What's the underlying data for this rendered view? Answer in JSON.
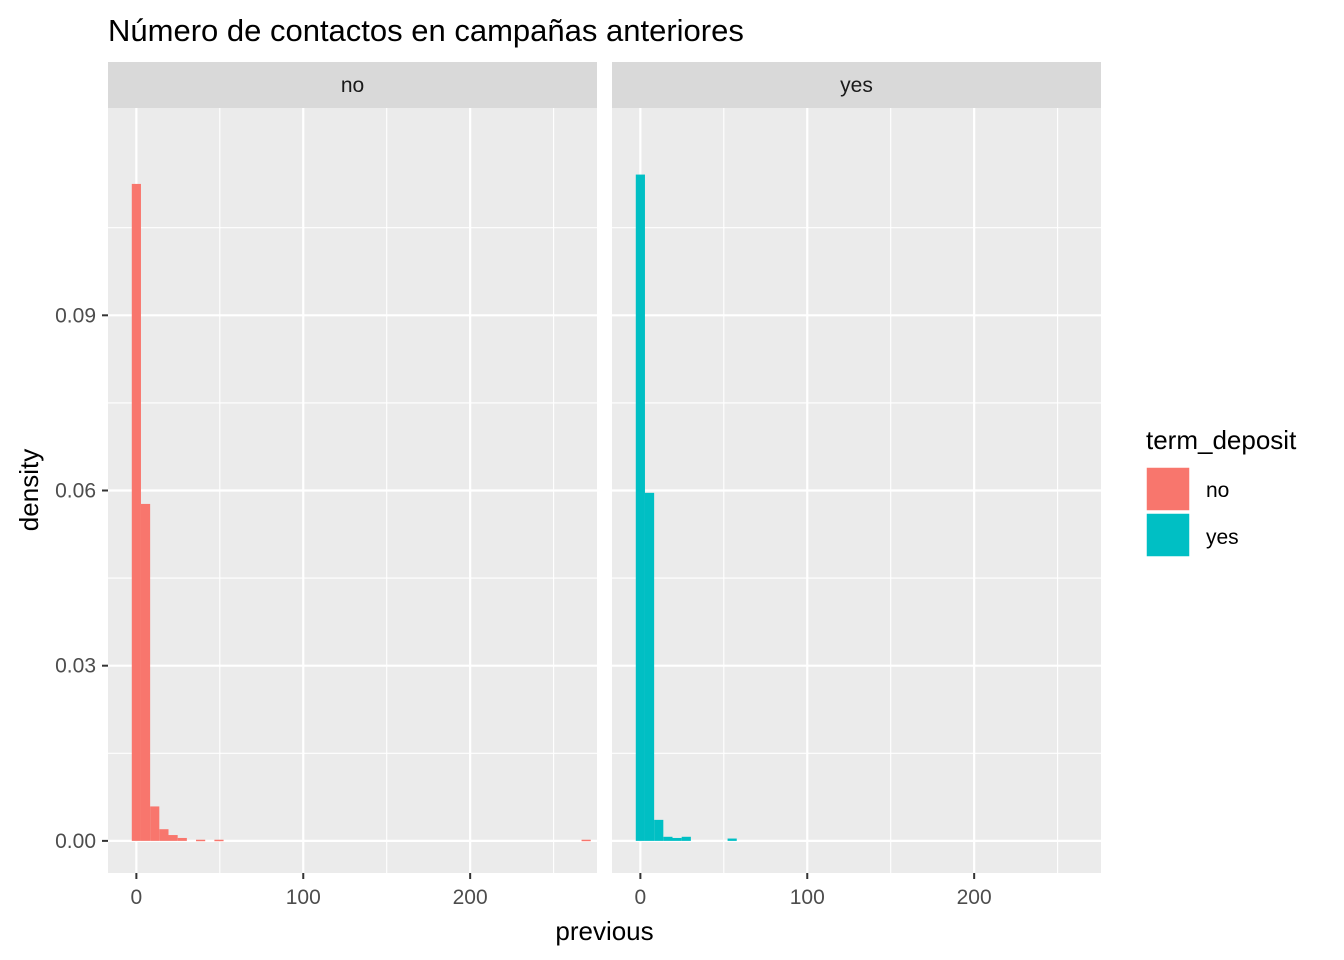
{
  "chart_data": {
    "type": "bar",
    "title": "Número de contactos en campañas anteriores",
    "xlabel": "previous",
    "ylabel": "density",
    "xlim": [
      -17,
      276
    ],
    "ylim": [
      -0.0055,
      0.1255
    ],
    "x_ticks": [
      0,
      100,
      200
    ],
    "x_tick_labels": [
      "0",
      "100",
      "200"
    ],
    "y_ticks": [
      0,
      0.03,
      0.06,
      0.09
    ],
    "y_tick_labels": [
      "0.00",
      "0.03",
      "0.06",
      "0.09"
    ],
    "grid": true,
    "bin_width": 5.5,
    "legend": {
      "title": "term_deposit",
      "placement": "right",
      "entries": [
        {
          "label": "no",
          "color": "#F8766D"
        },
        {
          "label": "yes",
          "color": "#00BFC4"
        }
      ]
    },
    "panels": [
      {
        "label": "no",
        "color": "#F8766D",
        "bins": [
          {
            "x": 0,
            "y": 0.1125
          },
          {
            "x": 5.5,
            "y": 0.0577
          },
          {
            "x": 11,
            "y": 0.0059
          },
          {
            "x": 16.5,
            "y": 0.002
          },
          {
            "x": 22,
            "y": 0.001
          },
          {
            "x": 27.5,
            "y": 0.0005
          },
          {
            "x": 38.5,
            "y": 0.0002
          },
          {
            "x": 49.5,
            "y": 0.0002
          },
          {
            "x": 269.5,
            "y": 0.0002
          }
        ]
      },
      {
        "label": "yes",
        "color": "#00BFC4",
        "bins": [
          {
            "x": 0,
            "y": 0.1141
          },
          {
            "x": 5.5,
            "y": 0.0596
          },
          {
            "x": 11,
            "y": 0.0036
          },
          {
            "x": 16.5,
            "y": 0.0007
          },
          {
            "x": 22,
            "y": 0.0005
          },
          {
            "x": 27.5,
            "y": 0.0007
          },
          {
            "x": 55,
            "y": 0.0004
          }
        ]
      }
    ]
  }
}
